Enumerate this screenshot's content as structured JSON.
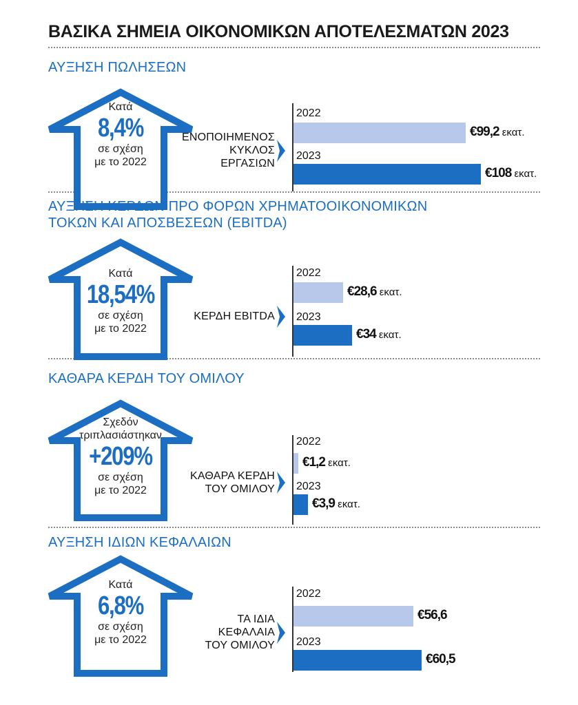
{
  "title": "ΒΑΣΙΚΑ ΣΗΜΕΙΑ ΟΙΚΟΝΟΜΙΚΩΝ ΑΠΟΤΕΛΕΣΜΑΤΩΝ 2023",
  "colors": {
    "accent": "#1b6ec2",
    "bar_2022": "#b7c8ea",
    "bar_2023": "#1b6ec2"
  },
  "sections": [
    {
      "title_lines": [
        "ΑΥΞΗΣΗ ΠΩΛΗΣΕΩΝ"
      ],
      "house": {
        "pre": [
          "Κατά"
        ],
        "pct": "8,4%",
        "post": [
          "σε σχέση",
          "με το 2022"
        ]
      },
      "metric_lines": [
        "ΕΝΟΠΟΙΗΜΕΝΟΣ",
        "ΚΥΚΛΟΣ",
        "ΕΡΓΑΣΙΩΝ"
      ],
      "bars": [
        {
          "year": "2022",
          "value_text": "€99,2",
          "unit": "εκατ."
        },
        {
          "year": "2023",
          "value_text": "€108",
          "unit": "εκατ."
        }
      ]
    },
    {
      "title_lines": [
        "ΑΥΞΗΣΗ ΚΕΡΔΩΝ ΠΡΟ ΦΟΡΩΝ ΧΡΗΜΑΤΟΟΙΚΟΝΟΜΙΚΩΝ",
        "ΤΟΚΩΝ ΚΑΙ ΑΠΟΣΒΕΣΕΩΝ (EBITDA)"
      ],
      "house": {
        "pre": [
          "Κατά"
        ],
        "pct": "18,54%",
        "post": [
          "σε σχέση",
          "με το 2022"
        ]
      },
      "metric_lines": [
        "ΚΕΡΔΗ EBITDA"
      ],
      "bars": [
        {
          "year": "2022",
          "value_text": "€28,6",
          "unit": "εκατ."
        },
        {
          "year": "2023",
          "value_text": "€34",
          "unit": "εκατ."
        }
      ]
    },
    {
      "title_lines": [
        "ΚΑΘΑΡΑ ΚΕΡΔΗ ΤΟΥ ΟΜΙΛΟΥ"
      ],
      "house": {
        "pre": [
          "Σχεδόν",
          "τριπλασιάστηκαν"
        ],
        "pct": "+209%",
        "post": [
          "σε σχέση",
          "με το 2022"
        ]
      },
      "metric_lines": [
        "ΚΑΘΑΡΑ ΚΕΡΔΗ",
        "ΤΟΥ ΟΜΙΛΟΥ"
      ],
      "bars": [
        {
          "year": "2022",
          "value_text": "€1,2",
          "unit": "εκατ."
        },
        {
          "year": "2023",
          "value_text": "€3,9",
          "unit": "εκατ."
        }
      ]
    },
    {
      "title_lines": [
        "ΑΥΞΗΣΗ ΙΔΙΩΝ ΚΕΦΑΛΑΙΩΝ"
      ],
      "house": {
        "pre": [
          "Κατά"
        ],
        "pct": "6,8%",
        "post": [
          "σε σχέση",
          "με το 2022"
        ]
      },
      "metric_lines": [
        "ΤΑ ΙΔΙΑ",
        "ΚΕΦΑΛΑΙΑ",
        "ΤΟΥ ΟΜΙΛΟΥ"
      ],
      "bars": [
        {
          "year": "2022",
          "value_text": "€56,6",
          "unit": ""
        },
        {
          "year": "2023",
          "value_text": "€60,5",
          "unit": ""
        }
      ]
    }
  ],
  "chart_data": [
    {
      "type": "bar",
      "categories": [
        "2022",
        "2023"
      ],
      "values": [
        99.2,
        108
      ],
      "ylabel": "εκατ."
    },
    {
      "type": "bar",
      "categories": [
        "2022",
        "2023"
      ],
      "values": [
        28.6,
        34
      ],
      "ylabel": "εκατ."
    },
    {
      "type": "bar",
      "categories": [
        "2022",
        "2023"
      ],
      "values": [
        1.2,
        3.9
      ],
      "ylabel": "εκατ."
    },
    {
      "type": "bar",
      "categories": [
        "2022",
        "2023"
      ],
      "values": [
        56.6,
        60.5
      ]
    }
  ]
}
